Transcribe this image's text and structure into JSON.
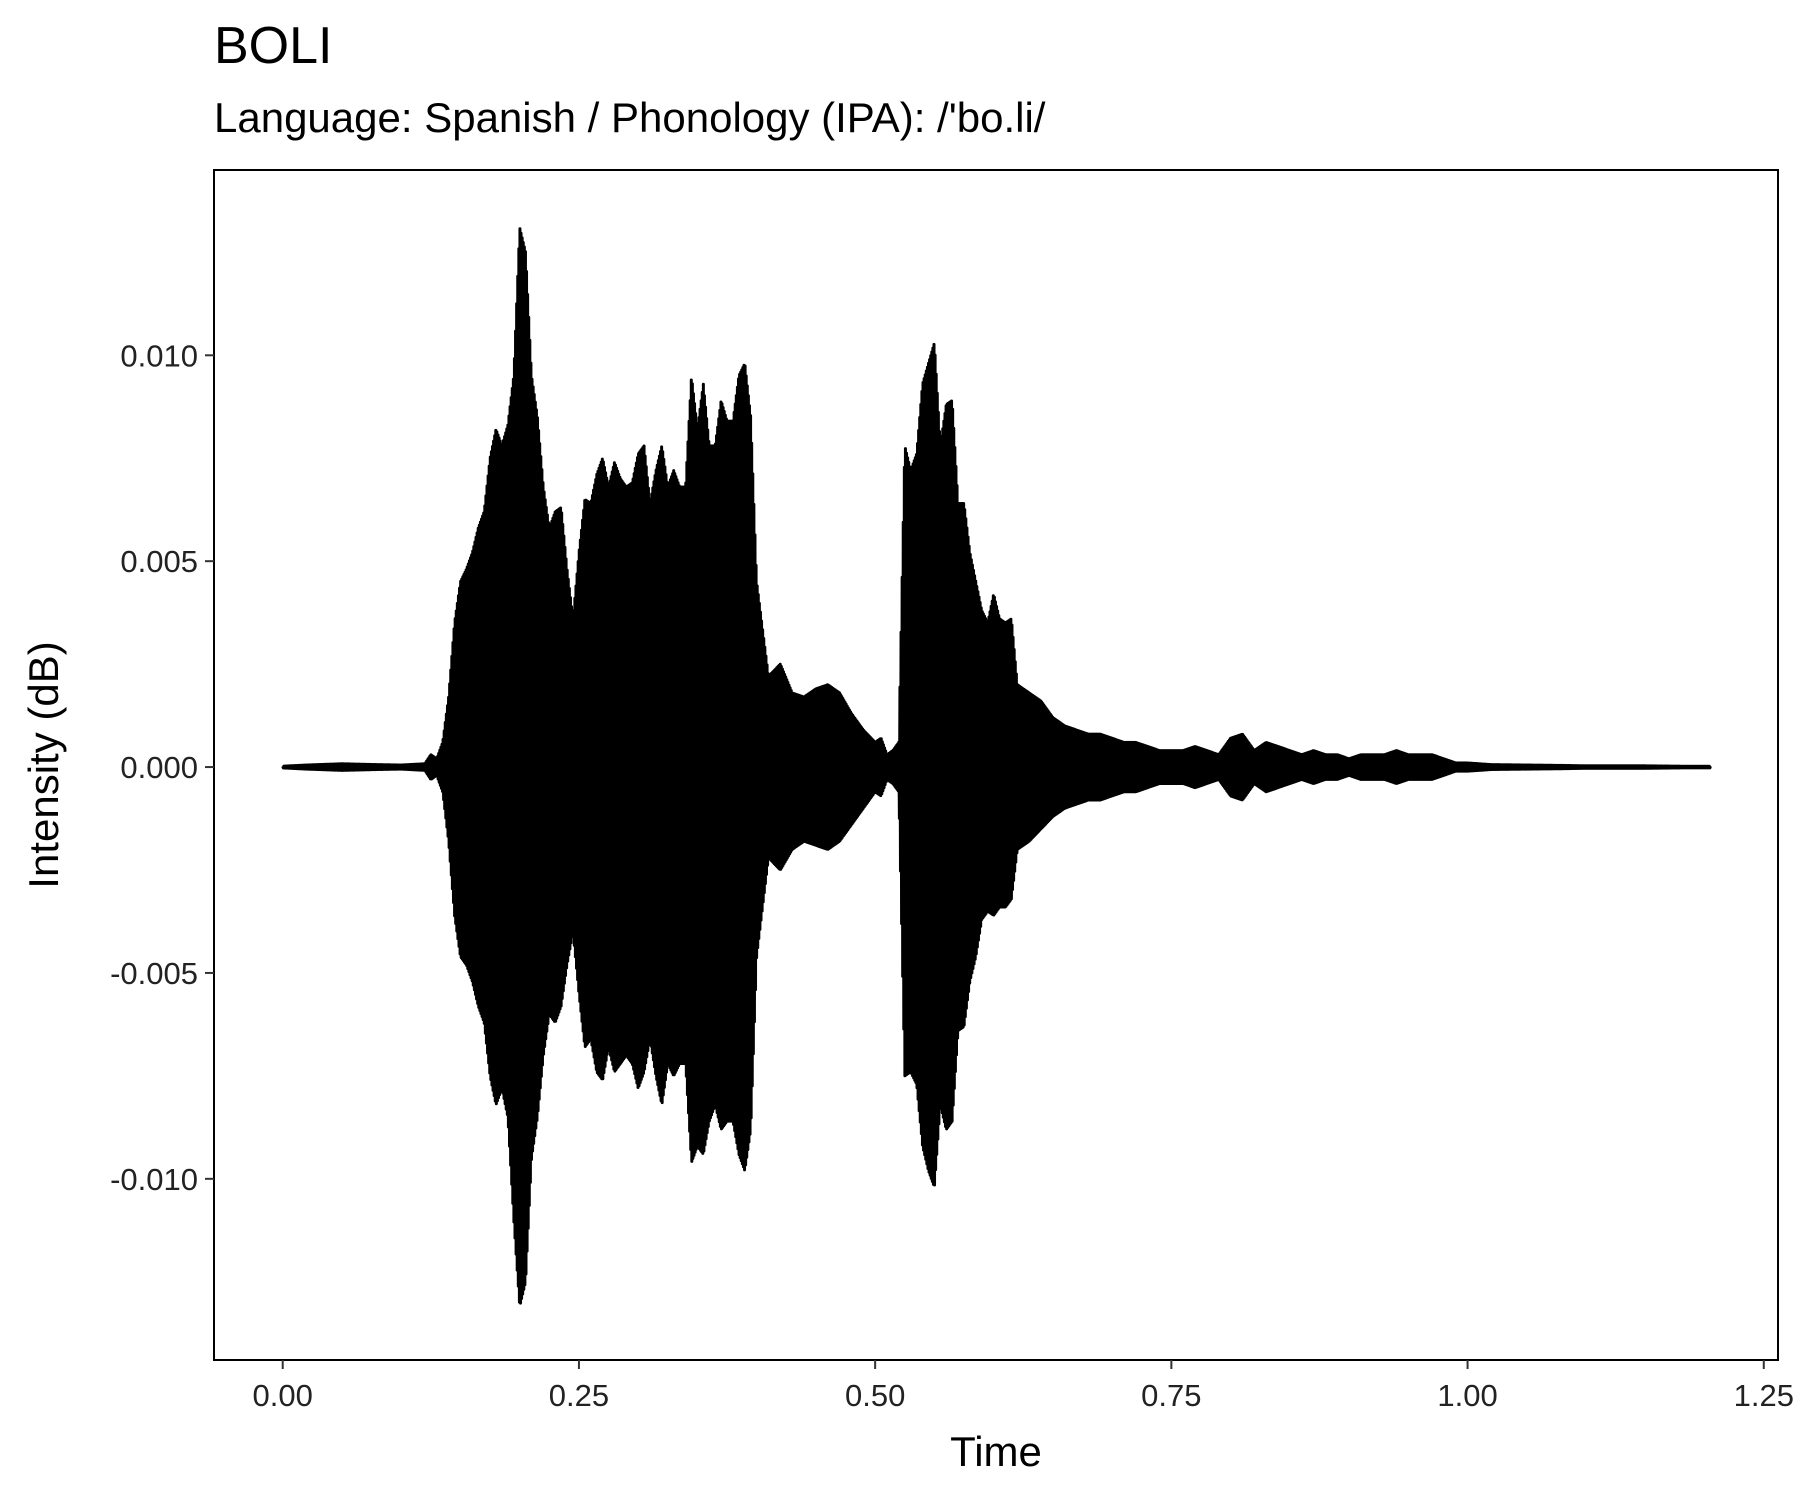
{
  "chart_data": {
    "type": "line",
    "title": "BOLI",
    "subtitle": "Language: Spanish / Phonology (IPA): /'bo.li/",
    "xlabel": "Time",
    "ylabel": "Intensity (dB)",
    "xlim": [
      -0.058,
      1.262
    ],
    "ylim": [
      -0.0144,
      0.0145
    ],
    "x_ticks": [
      0.0,
      0.25,
      0.5,
      0.75,
      1.0,
      1.25
    ],
    "x_tick_labels": [
      "0.00",
      "0.25",
      "0.50",
      "0.75",
      "1.00",
      "1.25"
    ],
    "y_ticks": [
      -0.01,
      -0.005,
      0.0,
      0.005,
      0.01
    ],
    "y_tick_labels": [
      "-0.010",
      "-0.005",
      "0.000",
      "0.005",
      "0.010"
    ],
    "grid": false,
    "legend": "none",
    "line_color": "#000000",
    "series": [
      {
        "x": [
          0.0,
          0.02,
          0.05,
          0.08,
          0.1,
          0.12,
          0.125,
          0.13,
          0.135,
          0.14,
          0.145,
          0.15,
          0.155,
          0.16,
          0.165,
          0.17,
          0.175,
          0.18,
          0.185,
          0.19,
          0.195,
          0.2,
          0.205,
          0.21,
          0.215,
          0.22,
          0.225,
          0.23,
          0.235,
          0.24,
          0.245,
          0.25,
          0.255,
          0.26,
          0.265,
          0.27,
          0.275,
          0.28,
          0.285,
          0.29,
          0.295,
          0.3,
          0.305,
          0.31,
          0.315,
          0.32,
          0.325,
          0.33,
          0.335,
          0.34,
          0.345,
          0.35,
          0.355,
          0.36,
          0.365,
          0.37,
          0.375,
          0.38,
          0.385,
          0.39,
          0.395,
          0.4,
          0.41,
          0.42,
          0.43,
          0.44,
          0.45,
          0.46,
          0.47,
          0.48,
          0.49,
          0.5,
          0.505,
          0.51,
          0.515,
          0.52,
          0.525,
          0.53,
          0.535,
          0.54,
          0.545,
          0.55,
          0.555,
          0.56,
          0.565,
          0.57,
          0.575,
          0.58,
          0.585,
          0.59,
          0.595,
          0.6,
          0.605,
          0.61,
          0.615,
          0.62,
          0.63,
          0.64,
          0.65,
          0.66,
          0.67,
          0.68,
          0.69,
          0.7,
          0.71,
          0.72,
          0.73,
          0.74,
          0.75,
          0.76,
          0.77,
          0.78,
          0.79,
          0.8,
          0.81,
          0.82,
          0.83,
          0.84,
          0.85,
          0.86,
          0.87,
          0.88,
          0.89,
          0.9,
          0.91,
          0.92,
          0.93,
          0.94,
          0.95,
          0.96,
          0.97,
          0.98,
          0.99,
          1.0,
          1.02,
          1.05,
          1.08,
          1.1,
          1.12,
          1.15,
          1.18,
          1.205
        ],
        "y_max": [
          2e-05,
          5e-05,
          8e-05,
          6e-05,
          5e-05,
          8e-05,
          0.0003,
          0.0002,
          0.0006,
          0.0017,
          0.0035,
          0.0045,
          0.0048,
          0.0052,
          0.0058,
          0.0062,
          0.0075,
          0.0082,
          0.0078,
          0.0083,
          0.0095,
          0.0131,
          0.0125,
          0.0095,
          0.0085,
          0.0068,
          0.0058,
          0.0062,
          0.0063,
          0.0048,
          0.0036,
          0.0052,
          0.0065,
          0.0064,
          0.0071,
          0.0075,
          0.0068,
          0.0074,
          0.007,
          0.0068,
          0.0069,
          0.0076,
          0.0078,
          0.0064,
          0.0072,
          0.0078,
          0.0068,
          0.0072,
          0.0068,
          0.0068,
          0.0095,
          0.0082,
          0.0093,
          0.0078,
          0.0078,
          0.0089,
          0.0084,
          0.0084,
          0.0095,
          0.0098,
          0.0085,
          0.0045,
          0.0022,
          0.0025,
          0.0018,
          0.0017,
          0.0019,
          0.002,
          0.0018,
          0.0013,
          0.0009,
          0.0006,
          0.0007,
          0.0003,
          0.0004,
          0.0006,
          0.0078,
          0.0072,
          0.0076,
          0.0093,
          0.0098,
          0.0103,
          0.0078,
          0.0088,
          0.0089,
          0.0064,
          0.0064,
          0.0052,
          0.0045,
          0.0038,
          0.0035,
          0.0042,
          0.0036,
          0.0035,
          0.0036,
          0.002,
          0.0018,
          0.0016,
          0.0012,
          0.001,
          0.0009,
          0.0008,
          0.0008,
          0.0007,
          0.0006,
          0.0006,
          0.0005,
          0.0004,
          0.0004,
          0.0004,
          0.0005,
          0.0004,
          0.0003,
          0.0007,
          0.0008,
          0.0004,
          0.0006,
          0.0005,
          0.0004,
          0.0003,
          0.0004,
          0.0003,
          0.0003,
          0.0002,
          0.0003,
          0.0003,
          0.0003,
          0.0004,
          0.0003,
          0.0003,
          0.0003,
          0.0002,
          0.0001,
          0.0001,
          6e-05,
          5e-05,
          4e-05,
          3e-05,
          3e-05,
          3e-05,
          2e-05,
          2e-05
        ],
        "y_min": [
          -2e-05,
          -5e-05,
          -8e-05,
          -6e-05,
          -5e-05,
          -8e-05,
          -0.0003,
          -0.0002,
          -0.0006,
          -0.0018,
          -0.0036,
          -0.0046,
          -0.0048,
          -0.0052,
          -0.0058,
          -0.0062,
          -0.0075,
          -0.0082,
          -0.0078,
          -0.0085,
          -0.011,
          -0.0131,
          -0.0125,
          -0.0095,
          -0.0085,
          -0.007,
          -0.006,
          -0.0062,
          -0.0058,
          -0.0048,
          -0.004,
          -0.0055,
          -0.0068,
          -0.0066,
          -0.0074,
          -0.0076,
          -0.0068,
          -0.0074,
          -0.0072,
          -0.007,
          -0.0072,
          -0.0078,
          -0.0074,
          -0.0066,
          -0.0075,
          -0.0082,
          -0.0072,
          -0.0075,
          -0.0072,
          -0.0072,
          -0.0096,
          -0.0092,
          -0.0094,
          -0.0086,
          -0.0082,
          -0.0088,
          -0.0086,
          -0.0086,
          -0.0094,
          -0.0098,
          -0.0088,
          -0.0046,
          -0.0022,
          -0.0025,
          -0.002,
          -0.0018,
          -0.0019,
          -0.002,
          -0.0018,
          -0.0014,
          -0.001,
          -0.0006,
          -0.0007,
          -0.0003,
          -0.0004,
          -0.0006,
          -0.0075,
          -0.0074,
          -0.0077,
          -0.0092,
          -0.0098,
          -0.0102,
          -0.0082,
          -0.0088,
          -0.0086,
          -0.0064,
          -0.0063,
          -0.0052,
          -0.0046,
          -0.0037,
          -0.0035,
          -0.0036,
          -0.0034,
          -0.0034,
          -0.0032,
          -0.002,
          -0.0018,
          -0.0015,
          -0.0012,
          -0.001,
          -0.0009,
          -0.0008,
          -0.0008,
          -0.0007,
          -0.0006,
          -0.0006,
          -0.0005,
          -0.0004,
          -0.0004,
          -0.0004,
          -0.0005,
          -0.0004,
          -0.0003,
          -0.0007,
          -0.0008,
          -0.0004,
          -0.0006,
          -0.0005,
          -0.0004,
          -0.0003,
          -0.0004,
          -0.0003,
          -0.0003,
          -0.0002,
          -0.0003,
          -0.0003,
          -0.0003,
          -0.0004,
          -0.0003,
          -0.0003,
          -0.0003,
          -0.0002,
          -0.0001,
          -0.0001,
          -6e-05,
          -5e-05,
          -4e-05,
          -3e-05,
          -3e-05,
          -3e-05,
          -2e-05,
          -2e-05
        ]
      }
    ]
  }
}
